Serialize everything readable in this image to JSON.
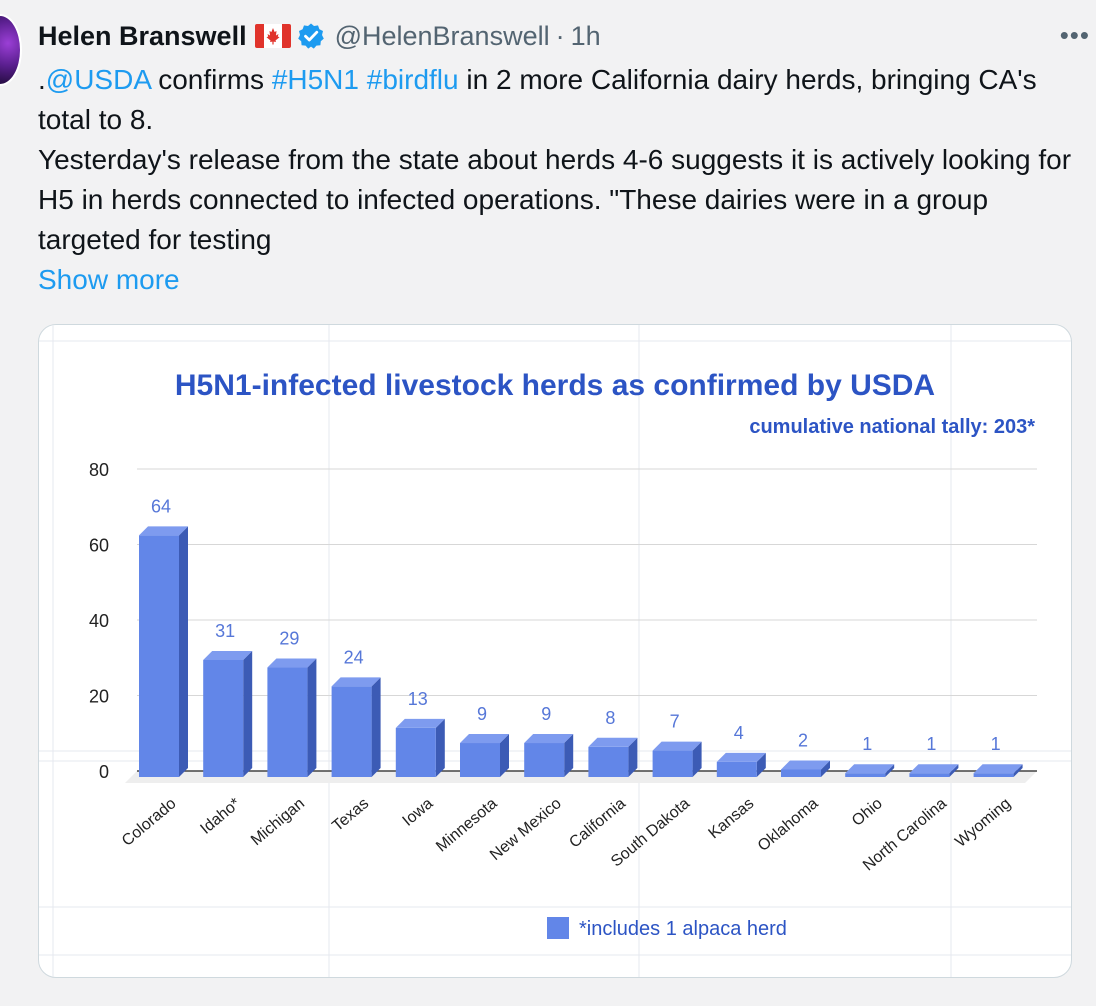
{
  "tweet": {
    "author_name": "Helen Branswell",
    "handle": "@HelenBranswell",
    "separator": "·",
    "time": "1h",
    "more_glyph": "•••",
    "line1_prefix": ".",
    "mention": "@USDA",
    "line1_a": " confirms ",
    "hashtag1": "#H5N1",
    "line1_space": " ",
    "hashtag2": "#birdflu",
    "line1_b": " in 2 more California dairy herds, bringing CA's total to 8.",
    "paragraph2": "Yesterday's release from the state about herds 4-6 suggests it is actively looking for H5 in herds connected to infected operations. \"These dairies were in a group targeted for testing",
    "show_more": "Show more",
    "icons": {
      "avatar": "profile-avatar",
      "flag": "canada-flag-icon",
      "verified": "verified-badge-icon",
      "more": "more-options-icon"
    },
    "colors": {
      "link": "#1d9bf0",
      "verified": "#1d9bf0",
      "bar": "#6286e8",
      "title": "#2c54c4"
    }
  },
  "chart_data": {
    "type": "bar",
    "title": "H5N1-infected livestock herds as confirmed by USDA",
    "subtitle": "cumulative national tally: 203*",
    "categories": [
      "Colorado",
      "Idaho*",
      "Michigan",
      "Texas",
      "Iowa",
      "Minnesota",
      "New Mexico",
      "California",
      "South Dakota",
      "Kansas",
      "Oklahoma",
      "Ohio",
      "North Carolina",
      "Wyoming"
    ],
    "values": [
      64,
      31,
      29,
      24,
      13,
      9,
      9,
      8,
      7,
      4,
      2,
      1,
      1,
      1
    ],
    "ylim": [
      0,
      80
    ],
    "yticks": [
      0,
      20,
      40,
      60,
      80
    ],
    "grid": true,
    "legend_text": "*includes 1 alpaca herd",
    "legend_position": "bottom"
  }
}
